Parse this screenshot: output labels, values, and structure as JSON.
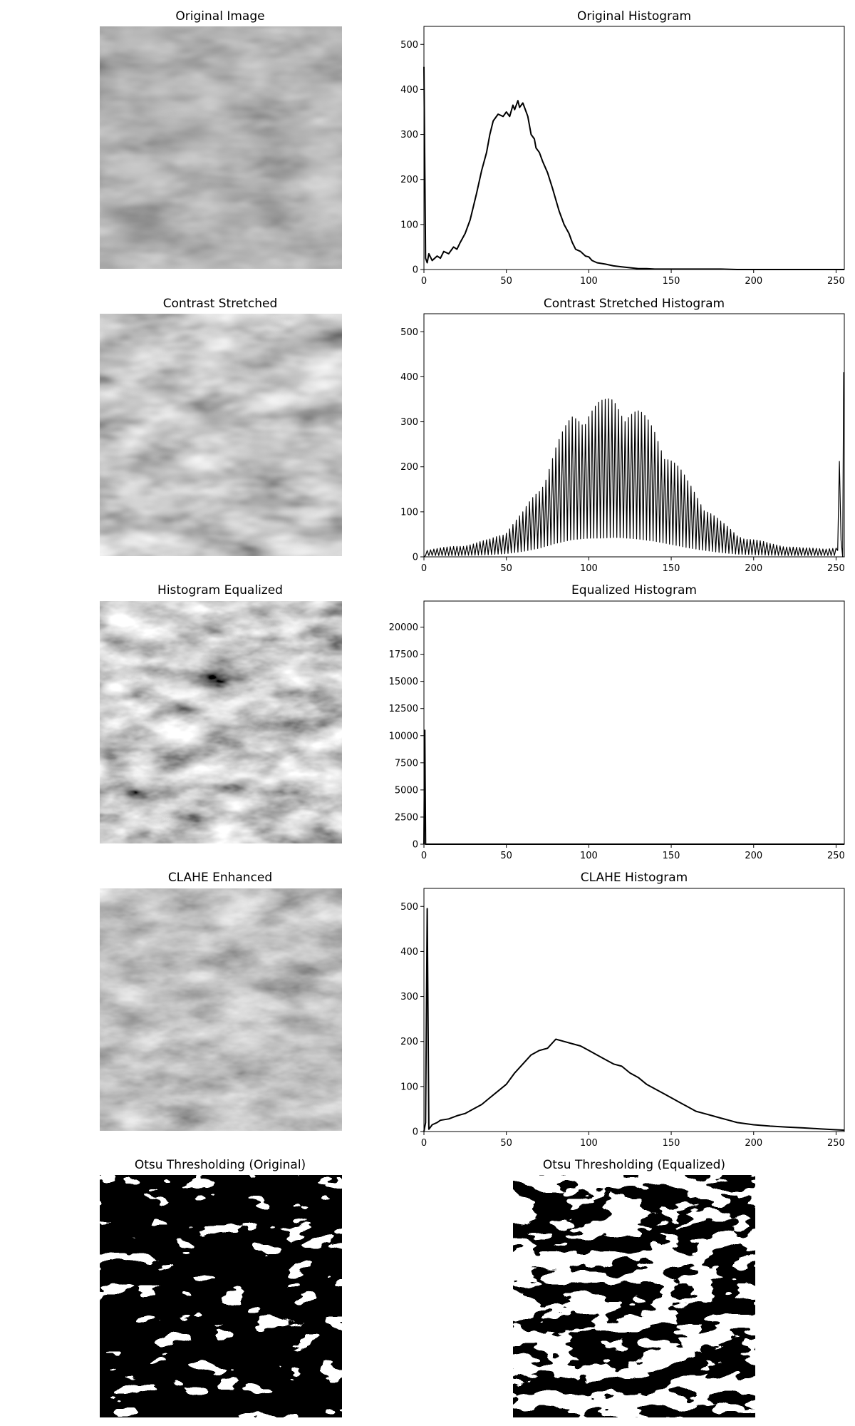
{
  "figure": {
    "image_panels": [
      {
        "title": "Original Image",
        "kind": "grayscale",
        "style": "original"
      },
      {
        "title": "Contrast Stretched",
        "kind": "grayscale",
        "style": "stretched"
      },
      {
        "title": "Histogram Equalized",
        "kind": "grayscale",
        "style": "equalized"
      },
      {
        "title": "CLAHE Enhanced",
        "kind": "grayscale",
        "style": "clahe"
      },
      {
        "title": "Otsu Thresholding (Original)",
        "kind": "binary",
        "style": "otsu1"
      },
      {
        "title": "Otsu Thresholding (Equalized)",
        "kind": "binary",
        "style": "otsu2"
      }
    ]
  },
  "chart_data": [
    {
      "type": "line",
      "title": "Original Histogram",
      "xlabel": "",
      "ylabel": "",
      "xlim": [
        0,
        255
      ],
      "ylim": [
        0,
        540
      ],
      "xticks": [
        "0",
        "50",
        "100",
        "150",
        "200",
        "250"
      ],
      "yticks": [
        "0",
        "100",
        "200",
        "300",
        "400",
        "500"
      ],
      "ytick_values": [
        0,
        100,
        200,
        300,
        400,
        500
      ],
      "series": [
        {
          "x": [
            0,
            1,
            2,
            3,
            5,
            8,
            10,
            12,
            15,
            18,
            20,
            22,
            25,
            28,
            30,
            32,
            35,
            38,
            40,
            42,
            45,
            48,
            50,
            52,
            54,
            55,
            57,
            58,
            60,
            62,
            63,
            65,
            67,
            68,
            70,
            72,
            75,
            78,
            80,
            82,
            85,
            88,
            90,
            92,
            95,
            98,
            100,
            102,
            105,
            110,
            115,
            120,
            125,
            130,
            135,
            140,
            150,
            160,
            170,
            180,
            190,
            200,
            255
          ],
          "y": [
            450,
            25,
            15,
            35,
            20,
            30,
            25,
            40,
            35,
            50,
            45,
            60,
            80,
            110,
            140,
            170,
            220,
            260,
            300,
            330,
            345,
            340,
            350,
            340,
            365,
            355,
            375,
            360,
            370,
            350,
            340,
            300,
            290,
            270,
            260,
            240,
            215,
            180,
            155,
            130,
            100,
            80,
            60,
            45,
            40,
            30,
            28,
            20,
            15,
            12,
            8,
            6,
            4,
            2,
            2,
            1,
            1,
            1,
            1,
            1,
            0,
            0,
            0
          ]
        }
      ]
    },
    {
      "type": "line",
      "title": "Contrast Stretched Histogram",
      "xlabel": "",
      "ylabel": "",
      "xlim": [
        0,
        255
      ],
      "ylim": [
        0,
        540
      ],
      "xticks": [
        "0",
        "50",
        "100",
        "150",
        "200",
        "250"
      ],
      "yticks": [
        "0",
        "100",
        "200",
        "300",
        "400",
        "500"
      ],
      "ytick_values": [
        0,
        100,
        200,
        300,
        400,
        500
      ],
      "comb": true,
      "envelope": {
        "x": [
          0,
          10,
          20,
          30,
          40,
          50,
          60,
          70,
          80,
          90,
          100,
          110,
          115,
          120,
          130,
          140,
          150,
          160,
          170,
          180,
          190,
          200,
          210,
          220,
          230,
          240,
          250,
          254
        ],
        "y": [
          15,
          20,
          25,
          30,
          40,
          60,
          100,
          160,
          250,
          320,
          345,
          350,
          360,
          355,
          330,
          290,
          230,
          170,
          120,
          80,
          50,
          40,
          30,
          25,
          20,
          20,
          20,
          410
        ]
      }
    },
    {
      "type": "line",
      "title": "Equalized Histogram",
      "xlabel": "",
      "ylabel": "",
      "xlim": [
        0,
        255
      ],
      "ylim": [
        0,
        22400
      ],
      "xticks": [
        "0",
        "50",
        "100",
        "150",
        "200",
        "250"
      ],
      "yticks": [
        "0",
        "2500",
        "5000",
        "7500",
        "10000",
        "12500",
        "15000",
        "17500",
        "20000"
      ],
      "ytick_values": [
        0,
        2500,
        5000,
        7500,
        10000,
        12500,
        15000,
        17500,
        20000
      ],
      "series": [
        {
          "x": [
            0,
            0.5,
            1,
            1.5,
            2,
            255
          ],
          "y": [
            0,
            10500,
            0,
            0,
            0,
            0
          ]
        }
      ]
    },
    {
      "type": "line",
      "title": "CLAHE Histogram",
      "xlabel": "",
      "ylabel": "",
      "xlim": [
        0,
        255
      ],
      "ylim": [
        0,
        540
      ],
      "xticks": [
        "0",
        "50",
        "100",
        "150",
        "200",
        "250"
      ],
      "yticks": [
        "0",
        "100",
        "200",
        "300",
        "400",
        "500"
      ],
      "ytick_values": [
        0,
        100,
        200,
        300,
        400,
        500
      ],
      "series": [
        {
          "x": [
            0,
            1,
            2,
            3,
            4,
            5,
            8,
            10,
            15,
            20,
            25,
            30,
            35,
            40,
            45,
            50,
            55,
            60,
            65,
            70,
            75,
            80,
            85,
            90,
            95,
            100,
            105,
            110,
            115,
            120,
            125,
            130,
            135,
            140,
            145,
            150,
            155,
            160,
            165,
            170,
            175,
            180,
            185,
            190,
            200,
            210,
            220,
            230,
            240,
            250,
            255
          ],
          "y": [
            0,
            20,
            495,
            5,
            10,
            15,
            20,
            25,
            28,
            35,
            40,
            50,
            60,
            75,
            90,
            105,
            130,
            150,
            170,
            180,
            185,
            205,
            200,
            195,
            190,
            180,
            170,
            160,
            150,
            145,
            130,
            120,
            105,
            95,
            85,
            75,
            65,
            55,
            45,
            40,
            35,
            30,
            25,
            20,
            15,
            12,
            10,
            8,
            6,
            4,
            3
          ]
        }
      ]
    }
  ]
}
